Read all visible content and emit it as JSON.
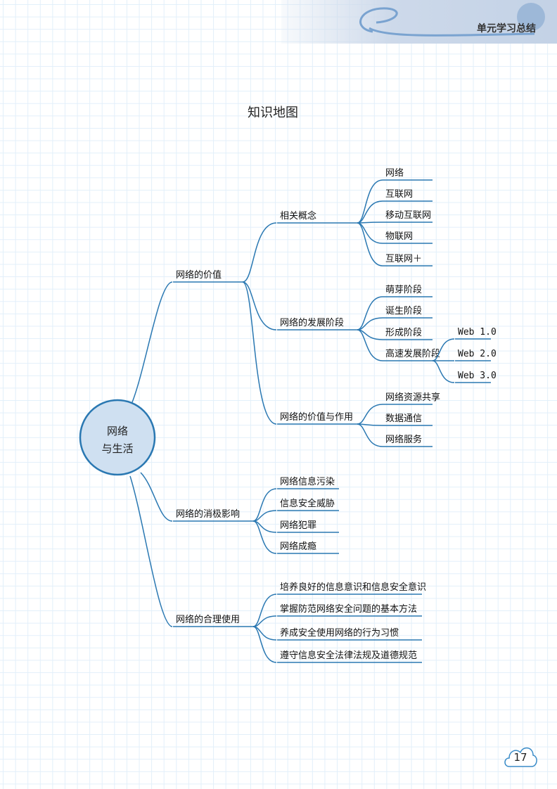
{
  "header": {
    "title": "单元学习总结"
  },
  "page_title": "知识地图",
  "colors": {
    "line": "#2a78b2",
    "node_fill": "#cfe0f1",
    "grid": "#e2effa"
  },
  "center": {
    "line1": "网络",
    "line2": "与生活"
  },
  "branches": [
    {
      "label": "网络的价值",
      "children": [
        {
          "label": "相关概念",
          "children": [
            {
              "label": "网络"
            },
            {
              "label": "互联网"
            },
            {
              "label": "移动互联网"
            },
            {
              "label": "物联网"
            },
            {
              "label": "互联网＋"
            }
          ]
        },
        {
          "label": "网络的发展阶段",
          "children": [
            {
              "label": "萌芽阶段"
            },
            {
              "label": "诞生阶段"
            },
            {
              "label": "形成阶段"
            },
            {
              "label": "高速发展阶段",
              "children": [
                {
                  "label": "Web 1.0"
                },
                {
                  "label": "Web 2.0"
                },
                {
                  "label": "Web 3.0"
                }
              ]
            }
          ]
        },
        {
          "label": "网络的价值与作用",
          "children": [
            {
              "label": "网络资源共享"
            },
            {
              "label": "数据通信"
            },
            {
              "label": "网络服务"
            }
          ]
        }
      ]
    },
    {
      "label": "网络的消极影响",
      "children": [
        {
          "label": "网络信息污染"
        },
        {
          "label": "信息安全威胁"
        },
        {
          "label": "网络犯罪"
        },
        {
          "label": "网络成瘾"
        }
      ]
    },
    {
      "label": "网络的合理使用",
      "children": [
        {
          "label": "培养良好的信息意识和信息安全意识"
        },
        {
          "label": "掌握防范网络安全问题的基本方法"
        },
        {
          "label": "养成安全使用网络的行为习惯"
        },
        {
          "label": "遵守信息安全法律法规及道德规范"
        }
      ]
    }
  ],
  "page_number": "17"
}
